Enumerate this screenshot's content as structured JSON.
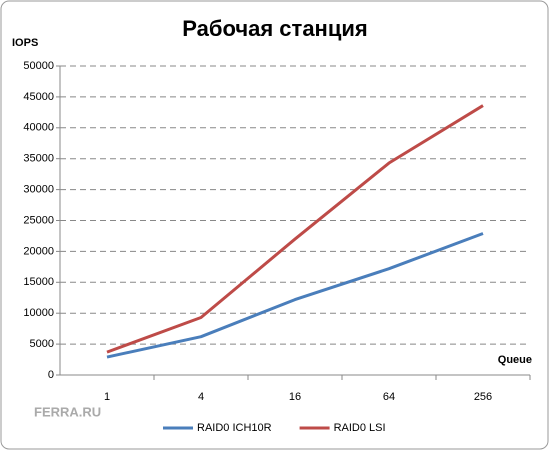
{
  "chart_data": {
    "type": "line",
    "title": "Рабочая станция",
    "y_label": "IOPS",
    "x_label": "Queue",
    "watermark": "FERRA.RU",
    "categories": [
      "1",
      "4",
      "16",
      "64",
      "256"
    ],
    "series": [
      {
        "name": "RAID0 ICH10R",
        "color": "#4a7ebb",
        "values": [
          2900,
          6200,
          12200,
          17200,
          22900
        ]
      },
      {
        "name": "RAID0 LSI",
        "color": "#be4b48",
        "values": [
          3700,
          9300,
          22000,
          34300,
          43600
        ]
      }
    ],
    "ylim": [
      0,
      50000
    ],
    "yticks": [
      0,
      5000,
      10000,
      15000,
      20000,
      25000,
      30000,
      35000,
      40000,
      45000,
      50000
    ],
    "grid": true,
    "legend": "bottom"
  }
}
